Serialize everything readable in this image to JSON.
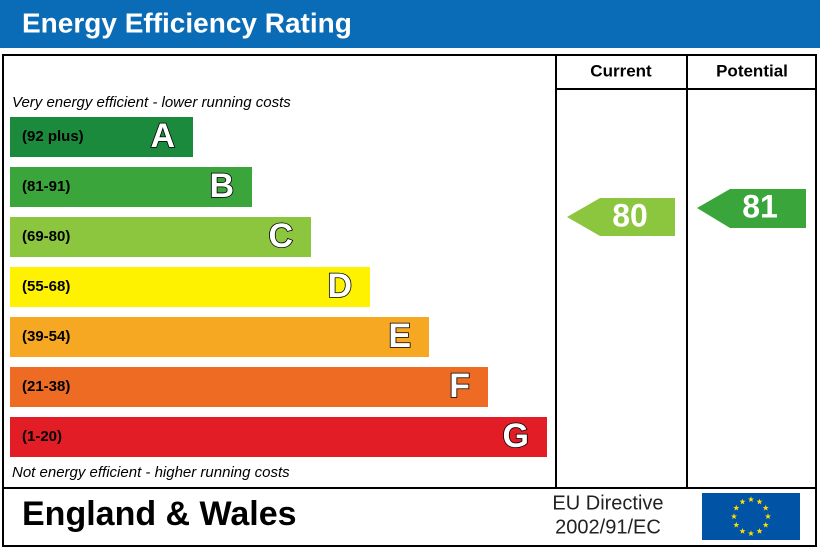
{
  "header": {
    "title": "Energy Efficiency Rating"
  },
  "columns": {
    "current": "Current",
    "potential": "Potential"
  },
  "top_note": "Very energy efficient - lower running costs",
  "bottom_note": "Not energy efficient - higher running costs",
  "bands": [
    {
      "range": "(92 plus)",
      "letter": "A",
      "color": "#1b8a3c"
    },
    {
      "range": "(81-91)",
      "letter": "B",
      "color": "#3aa53b"
    },
    {
      "range": "(69-80)",
      "letter": "C",
      "color": "#8cc63f"
    },
    {
      "range": "(55-68)",
      "letter": "D",
      "color": "#fff200"
    },
    {
      "range": "(39-54)",
      "letter": "E",
      "color": "#f7a823"
    },
    {
      "range": "(21-38)",
      "letter": "F",
      "color": "#ed6b23"
    },
    {
      "range": "(1-20)",
      "letter": "G",
      "color": "#e31d25"
    }
  ],
  "ratings": {
    "current": 80,
    "potential": 81
  },
  "footer": {
    "region": "England & Wales",
    "directive": [
      "EU Directive",
      "2002/91/EC"
    ]
  }
}
